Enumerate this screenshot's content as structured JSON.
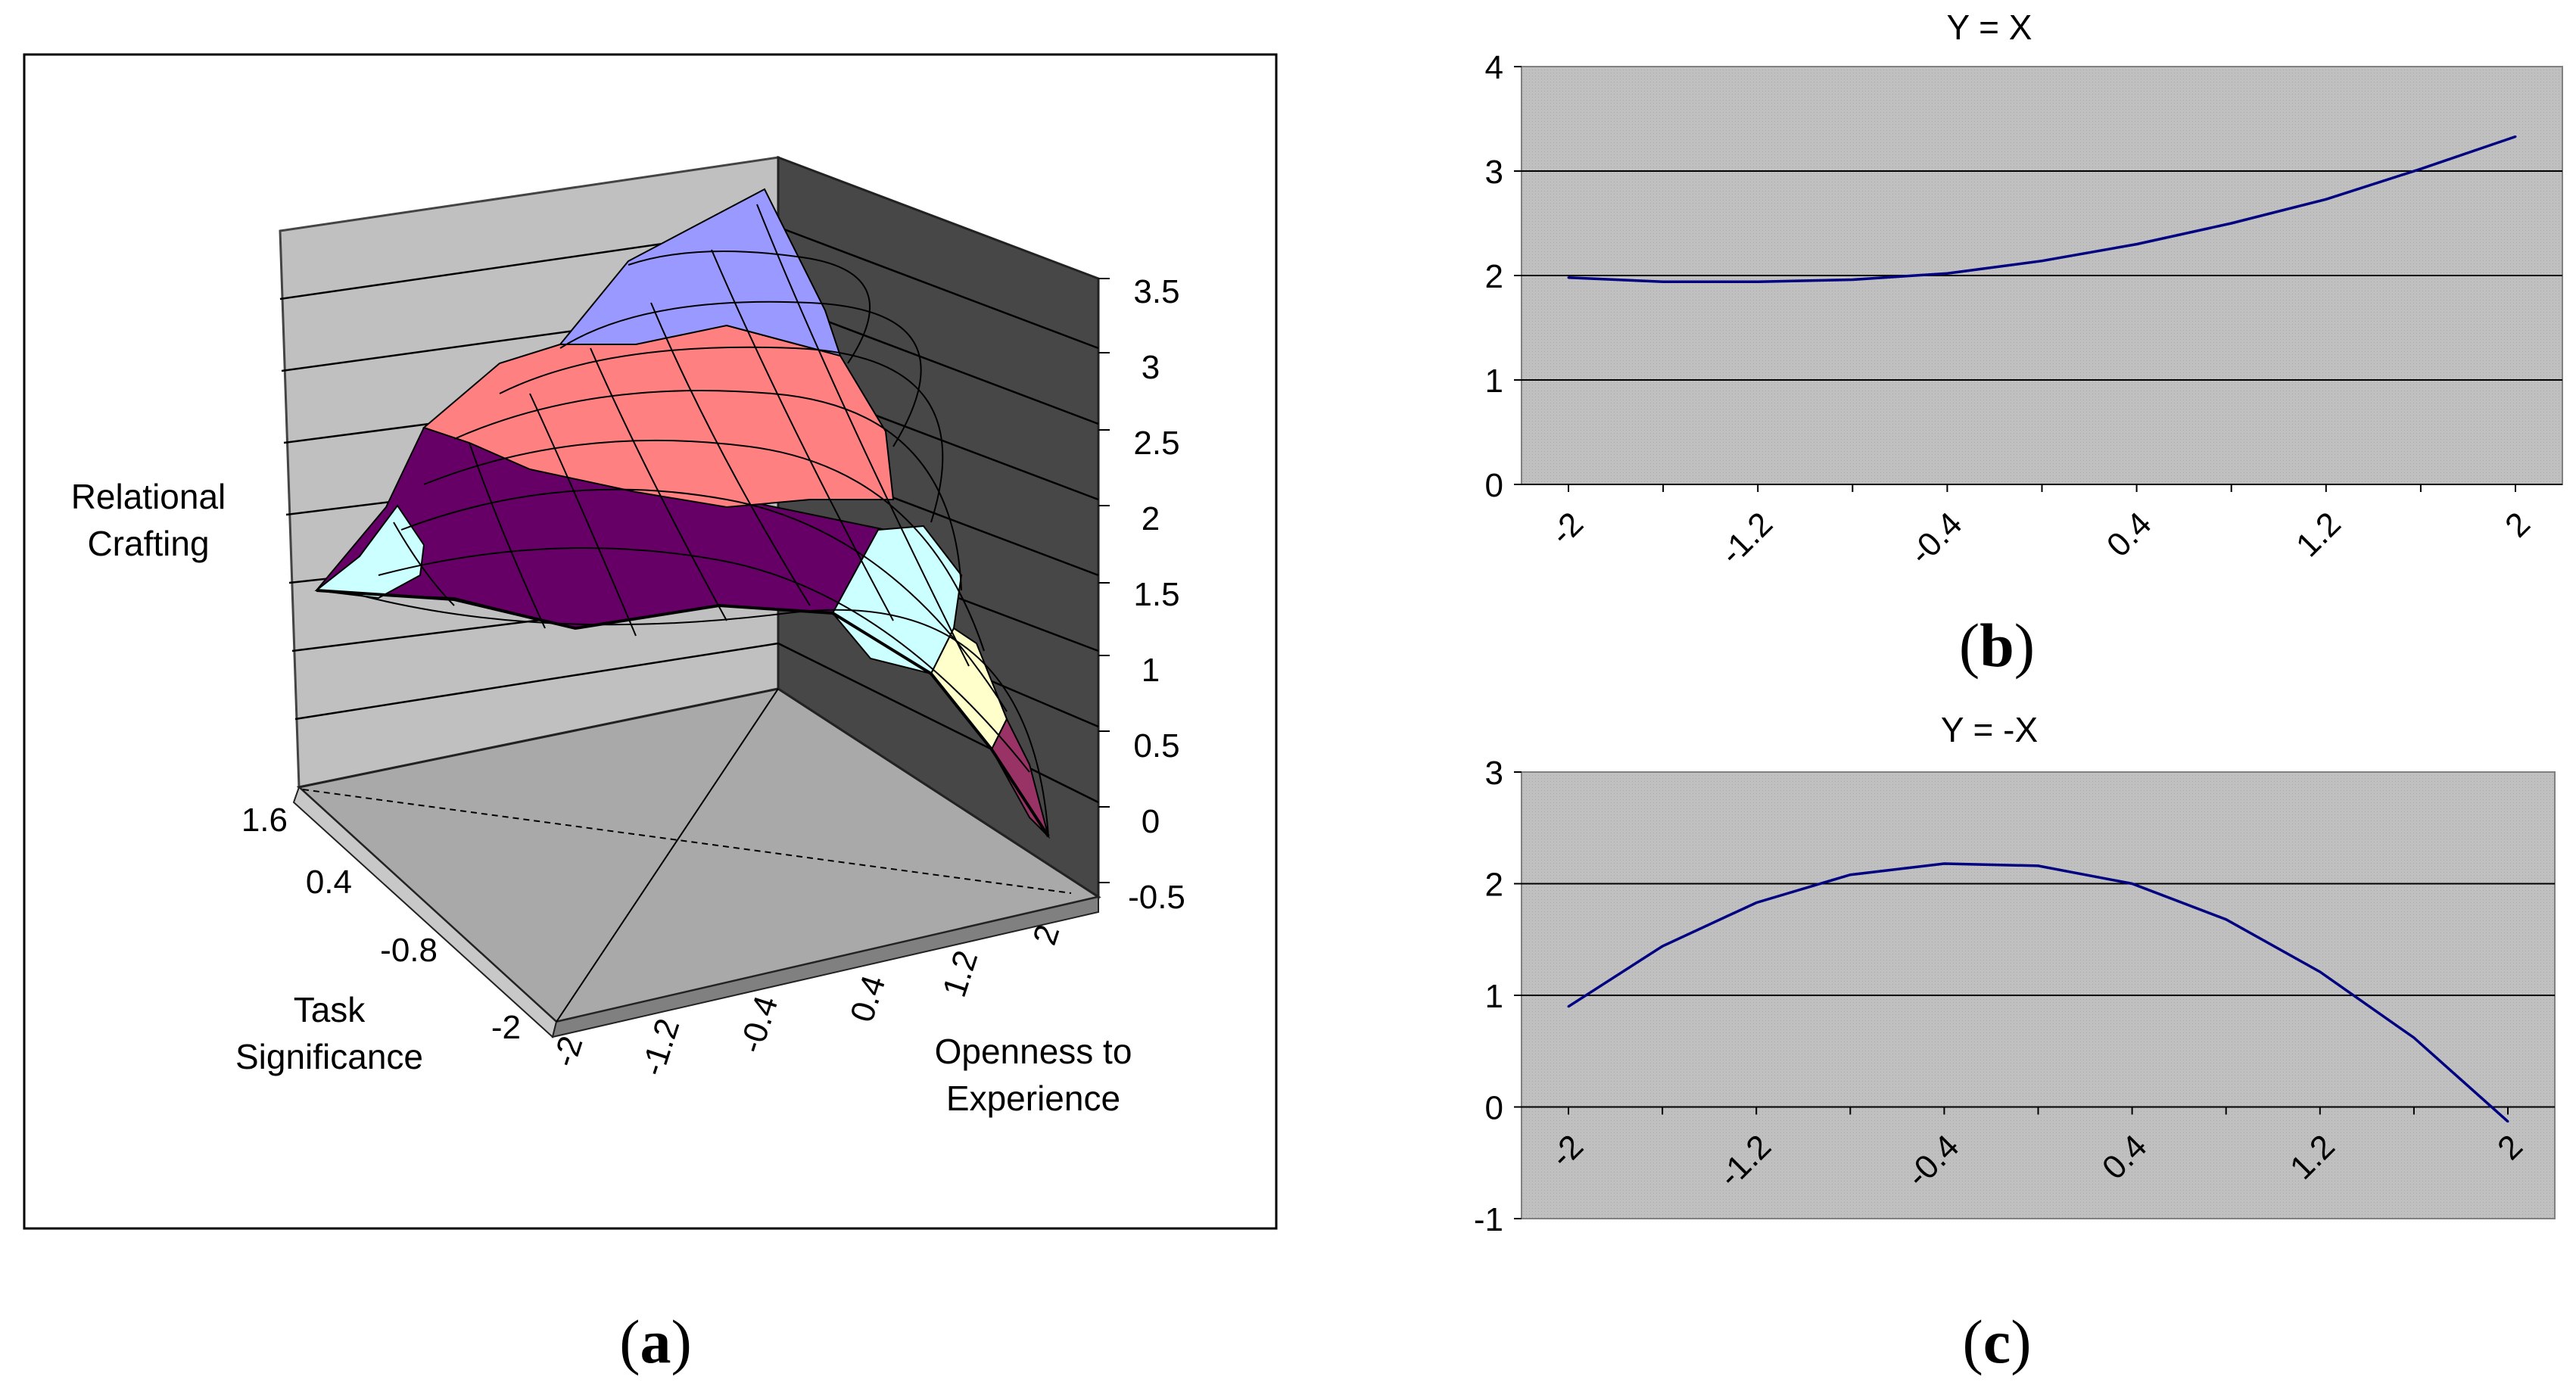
{
  "panels": {
    "a": {
      "label_open": "(",
      "label_letter": "a",
      "label_close": ")"
    },
    "b": {
      "label_open": "(",
      "label_letter": "b",
      "label_close": ")"
    },
    "c": {
      "label_open": "(",
      "label_letter": "c",
      "label_close": ")"
    }
  },
  "chart_data": [
    {
      "id": "a",
      "type": "surface",
      "title": "",
      "zlabel": [
        "Relational",
        "Crafting"
      ],
      "ylabel": [
        "Task",
        "Significance"
      ],
      "xlabel": [
        "Openness to",
        "Experience"
      ],
      "z_ticks": [
        "3.5",
        "3",
        "2.5",
        "2",
        "1.5",
        "1",
        "0.5",
        "0",
        "-0.5"
      ],
      "x_ticks": [
        "-2",
        "-1.2",
        "-0.4",
        "0.4",
        "1.2",
        "2"
      ],
      "y_ticks": [
        "1.6",
        "0.4",
        "-0.8",
        "-2"
      ],
      "zlim": [
        -0.5,
        3.5
      ],
      "bands": [
        {
          "range": "0-0.5",
          "color": "#993366"
        },
        {
          "range": "0.5-1",
          "color": "#ffffcc"
        },
        {
          "range": "1-1.5",
          "color": "#ccffff"
        },
        {
          "range": "1.5-2",
          "color": "#660066"
        },
        {
          "range": "2-2.5",
          "color": "#ff8080"
        },
        {
          "range": "2.5-3",
          "color": "#ff8080"
        },
        {
          "range": "3-3.5",
          "color": "#9999ff"
        }
      ]
    },
    {
      "id": "b",
      "type": "line",
      "title": "Y = X",
      "categories": [
        "-2",
        "-1.6",
        "-1.2",
        "-0.8",
        "-0.4",
        "0",
        "0.4",
        "0.8",
        "1.2",
        "1.6",
        "2"
      ],
      "shown_tick_labels": [
        "-2",
        "-1.2",
        "-0.4",
        "0.4",
        "1.2",
        "2"
      ],
      "values": [
        1.98,
        1.94,
        1.94,
        1.96,
        2.02,
        2.14,
        2.3,
        2.5,
        2.73,
        3.02,
        3.33
      ],
      "yticks": [
        "4",
        "3",
        "2",
        "1",
        "0"
      ],
      "ylim": [
        0,
        4
      ],
      "color": "#000080"
    },
    {
      "id": "c",
      "type": "line",
      "title": "Y = -X",
      "categories": [
        "-2",
        "-1.6",
        "-1.2",
        "-0.8",
        "-0.4",
        "0",
        "0.4",
        "0.8",
        "1.2",
        "1.6",
        "2"
      ],
      "shown_tick_labels": [
        "-2",
        "-1.2",
        "-0.4",
        "0.4",
        "1.2",
        "2"
      ],
      "values": [
        0.9,
        1.44,
        1.83,
        2.08,
        2.18,
        2.16,
        2.0,
        1.68,
        1.21,
        0.62,
        -0.13
      ],
      "yticks": [
        "3",
        "2",
        "1",
        "0",
        "-1"
      ],
      "ylim": [
        -1,
        3
      ],
      "color": "#000080"
    }
  ]
}
